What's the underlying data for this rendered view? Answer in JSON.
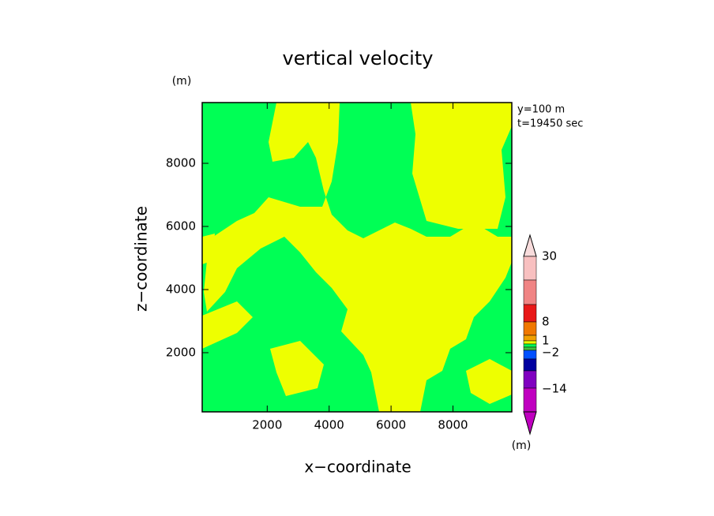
{
  "chart_data": {
    "type": "contour",
    "title": "vertical velocity",
    "x_label": "x−coordinate",
    "y_label": "z−coordinate",
    "y_unit": "(m)",
    "annotations": [
      "y=100 m",
      "t=19450 sec"
    ],
    "xlim": [
      -100,
      9900
    ],
    "ylim": [
      125,
      9925
    ],
    "xticks": [
      2000,
      4000,
      6000,
      8000
    ],
    "yticks": [
      2000,
      4000,
      6000,
      8000
    ],
    "colorbar": {
      "unit": "(m)",
      "levels": [
        30,
        8,
        1,
        {
          "value": -2,
          "label": "−2"
        },
        {
          "value": -14,
          "label": "−14"
        }
      ],
      "colors": [
        "#f8dcdc",
        "#f8c0c0",
        "#f08484",
        "#e81818",
        "#f07800",
        "#f0a000",
        "#eeff00",
        "#00ff55",
        "#40c040",
        "#0050ff",
        "#0000a0",
        "#8000c0",
        "#c000c0"
      ]
    }
  }
}
